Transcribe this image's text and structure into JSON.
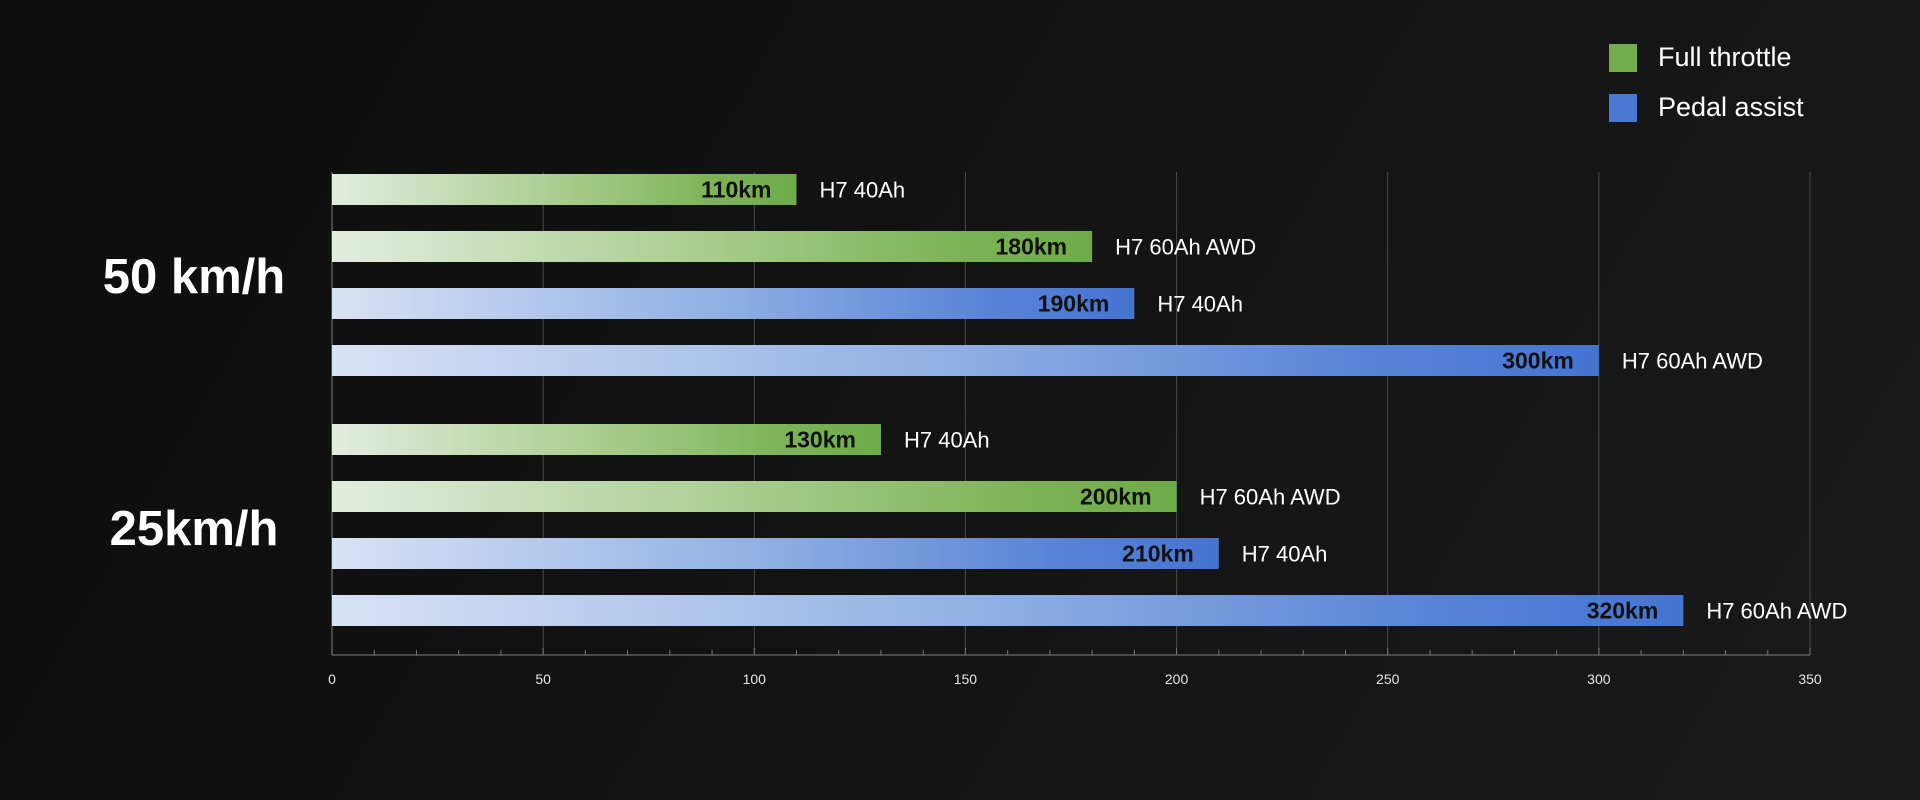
{
  "chart_data": {
    "type": "bar",
    "orientation": "horizontal",
    "xlim": [
      0,
      350
    ],
    "x_ticks": [
      0,
      50,
      100,
      150,
      200,
      250,
      300,
      350
    ],
    "x_minor_step": 10,
    "grid": true,
    "legend_position": "top-right",
    "value_unit": "km",
    "series": [
      {
        "name": "Full throttle",
        "color": "#72ad4c"
      },
      {
        "name": "Pedal assist",
        "color": "#4a78d2"
      }
    ],
    "groups": [
      {
        "label": "50 km/h",
        "bars": [
          {
            "series": "Full throttle",
            "value": 110,
            "value_label": "110km",
            "model": "H7 40Ah"
          },
          {
            "series": "Full throttle",
            "value": 180,
            "value_label": "180km",
            "model": "H7 60Ah AWD"
          },
          {
            "series": "Pedal assist",
            "value": 190,
            "value_label": "190km",
            "model": "H7 40Ah"
          },
          {
            "series": "Pedal assist",
            "value": 300,
            "value_label": "300km",
            "model": "H7 60Ah AWD"
          }
        ]
      },
      {
        "label": "25km/h",
        "bars": [
          {
            "series": "Full throttle",
            "value": 130,
            "value_label": "130km",
            "model": "H7 40Ah"
          },
          {
            "series": "Full throttle",
            "value": 200,
            "value_label": "200km",
            "model": "H7 60Ah AWD"
          },
          {
            "series": "Pedal assist",
            "value": 210,
            "value_label": "210km",
            "model": "H7 40Ah"
          },
          {
            "series": "Pedal assist",
            "value": 320,
            "value_label": "320km",
            "model": "H7 60Ah AWD"
          }
        ]
      }
    ]
  }
}
